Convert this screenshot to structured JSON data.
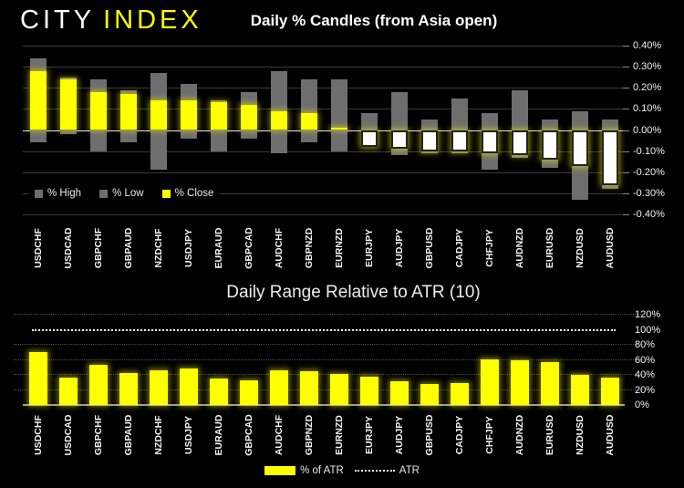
{
  "brand": {
    "city": "CITY",
    "index": "INDEX"
  },
  "colors": {
    "background": "#000000",
    "accent_yellow": "#ffff00",
    "range_gray": "#6e6e6e",
    "down_candle_white": "#ffffff",
    "gridline": "#3a3a3a",
    "zero_line": "#dedede",
    "text": "#f0f0f0"
  },
  "chart_data": [
    {
      "type": "bar",
      "subtype": "daily-percent-candles",
      "title": "Daily % Candles (from Asia open)",
      "legend_position": "bottom-left-inside",
      "grid": "on",
      "y_axis": {
        "side": "right",
        "format": "percent",
        "min": -0.4,
        "max": 0.4,
        "ticks": [
          "0.40%",
          "0.30%",
          "0.20%",
          "0.10%",
          "0.00%",
          "-0.10%",
          "-0.20%",
          "-0.30%",
          "-0.40%"
        ]
      },
      "categories": [
        "USDCHF",
        "USDCAD",
        "GBPCHF",
        "GBPAUD",
        "NZDCHF",
        "USDJPY",
        "EURAUD",
        "GBPCAD",
        "AUDCHF",
        "GBPNZD",
        "EURNZD",
        "EURJPY",
        "AUDJPY",
        "GBPUSD",
        "CADJPY",
        "CHFJPY",
        "AUDNZD",
        "EURUSD",
        "NZDUSD",
        "AUDUSD"
      ],
      "series": [
        {
          "name": "% High",
          "color": "#6e6e6e",
          "values": [
            0.34,
            0.25,
            0.24,
            0.19,
            0.27,
            0.22,
            0.14,
            0.18,
            0.28,
            0.24,
            0.24,
            0.08,
            0.18,
            0.05,
            0.15,
            0.08,
            0.19,
            0.05,
            0.09,
            0.05
          ]
        },
        {
          "name": "% Low",
          "color": "#6e6e6e",
          "values": [
            -0.06,
            -0.02,
            -0.1,
            -0.06,
            -0.19,
            -0.04,
            -0.1,
            -0.04,
            -0.11,
            -0.06,
            -0.1,
            -0.08,
            -0.12,
            -0.11,
            -0.11,
            -0.19,
            -0.13,
            -0.18,
            -0.33,
            -0.28
          ]
        },
        {
          "name": "% Close",
          "color": "#ffff00",
          "values": [
            0.28,
            0.24,
            0.18,
            0.17,
            0.14,
            0.14,
            0.13,
            0.12,
            0.09,
            0.08,
            0.01,
            -0.08,
            -0.09,
            -0.1,
            -0.1,
            -0.11,
            -0.12,
            -0.14,
            -0.17,
            -0.26
          ]
        }
      ],
      "legend": [
        {
          "label": "% High",
          "color": "#6e6e6e"
        },
        {
          "label": "% Low",
          "color": "#6e6e6e"
        },
        {
          "label": "% Close",
          "color": "#ffff00"
        }
      ]
    },
    {
      "type": "bar",
      "title": "Daily Range Relative to ATR (10)",
      "legend_position": "bottom-center-outside",
      "grid": "dotted",
      "y_axis": {
        "side": "right",
        "format": "percent",
        "min": 0,
        "max": 120,
        "ticks": [
          "120%",
          "100%",
          "80%",
          "60%",
          "40%",
          "20%",
          "0%"
        ]
      },
      "categories": [
        "USDCHF",
        "USDCAD",
        "GBPCHF",
        "GBPAUD",
        "NZDCHF",
        "USDJPY",
        "EURAUD",
        "GBPCAD",
        "AUDCHF",
        "GBPNZD",
        "EURNZD",
        "EURJPY",
        "AUDJPY",
        "GBPUSD",
        "CADJPY",
        "CHFJPY",
        "AUDNZD",
        "EURUSD",
        "NZDUSD",
        "AUDUSD"
      ],
      "series": [
        {
          "name": "% of ATR",
          "color": "#ffff00",
          "values": [
            70,
            36,
            53,
            42,
            46,
            49,
            35,
            33,
            46,
            45,
            41,
            37,
            32,
            28,
            29,
            61,
            59,
            57,
            40,
            36
          ]
        }
      ],
      "atr_line": {
        "label": "ATR",
        "value": 100,
        "style": "dotted",
        "color": "#ffffff"
      },
      "legend": [
        {
          "label": "% of ATR",
          "color": "#ffff00"
        },
        {
          "label": "ATR",
          "color": "#ffffff"
        }
      ]
    }
  ]
}
